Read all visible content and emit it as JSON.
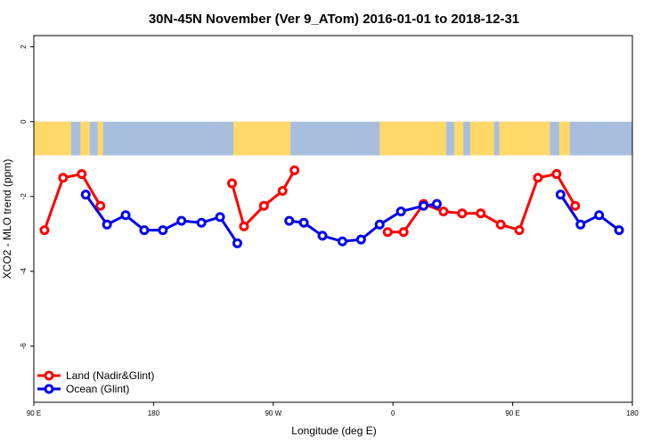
{
  "chart_data": {
    "type": "line",
    "title": "30N-45N November (Ver 9_ATom)   2016-01-01 to 2018-12-31",
    "xlabel": "Longitude (deg E)",
    "ylabel": "XCO2 - MLO trend (ppm)",
    "xlim": [
      90,
      540
    ],
    "ylim": [
      -7.5,
      2.3
    ],
    "x_ticks": [
      {
        "value": 90,
        "label": "90 E"
      },
      {
        "value": 180,
        "label": "180"
      },
      {
        "value": 270,
        "label": "90 W"
      },
      {
        "value": 360,
        "label": "0"
      },
      {
        "value": 450,
        "label": "90 E"
      },
      {
        "value": 540,
        "label": "180"
      }
    ],
    "y_ticks": [
      {
        "value": 2,
        "label": "2"
      },
      {
        "value": 0,
        "label": "0"
      },
      {
        "value": -2,
        "label": "-2"
      },
      {
        "value": -4,
        "label": "-4"
      },
      {
        "value": -6,
        "label": "-6"
      }
    ],
    "map_strip": {
      "y_top": 0,
      "y_bottom": -0.9,
      "land_color": "#ffd86a",
      "ocean_color": "#a8bedf"
    },
    "legend_position": "bottom-left",
    "series": [
      {
        "name": "Land (Nadir&Glint)",
        "color": "#ff0000",
        "segments": [
          [
            [
              98,
              -2.9
            ],
            [
              112,
              -1.5
            ],
            [
              126,
              -1.4
            ],
            [
              140,
              -2.25
            ]
          ],
          [
            [
              239,
              -1.65
            ],
            [
              248,
              -2.8
            ],
            [
              263,
              -2.25
            ],
            [
              277,
              -1.85
            ],
            [
              286,
              -1.3
            ]
          ],
          [
            [
              356,
              -2.95
            ],
            [
              368,
              -2.95
            ],
            [
              383,
              -2.2
            ],
            [
              398,
              -2.4
            ],
            [
              412,
              -2.45
            ],
            [
              426,
              -2.45
            ],
            [
              441,
              -2.75
            ],
            [
              455,
              -2.9
            ],
            [
              469,
              -1.5
            ],
            [
              483,
              -1.4
            ],
            [
              497,
              -2.25
            ]
          ]
        ]
      },
      {
        "name": "Ocean (Glint)",
        "color": "#0000ee",
        "segments": [
          [
            [
              129,
              -1.95
            ],
            [
              145,
              -2.75
            ],
            [
              159,
              -2.5
            ],
            [
              173,
              -2.9
            ],
            [
              187,
              -2.9
            ],
            [
              201,
              -2.65
            ],
            [
              216,
              -2.7
            ],
            [
              230,
              -2.55
            ],
            [
              243,
              -3.25
            ]
          ],
          [
            [
              282,
              -2.65
            ],
            [
              293,
              -2.7
            ],
            [
              307,
              -3.05
            ],
            [
              322,
              -3.2
            ],
            [
              336,
              -3.15
            ],
            [
              350,
              -2.75
            ],
            [
              366,
              -2.4
            ],
            [
              383,
              -2.25
            ],
            [
              393,
              -2.2
            ]
          ],
          [
            [
              486,
              -1.95
            ],
            [
              501,
              -2.75
            ],
            [
              515,
              -2.5
            ],
            [
              530,
              -2.9
            ]
          ]
        ]
      }
    ]
  }
}
